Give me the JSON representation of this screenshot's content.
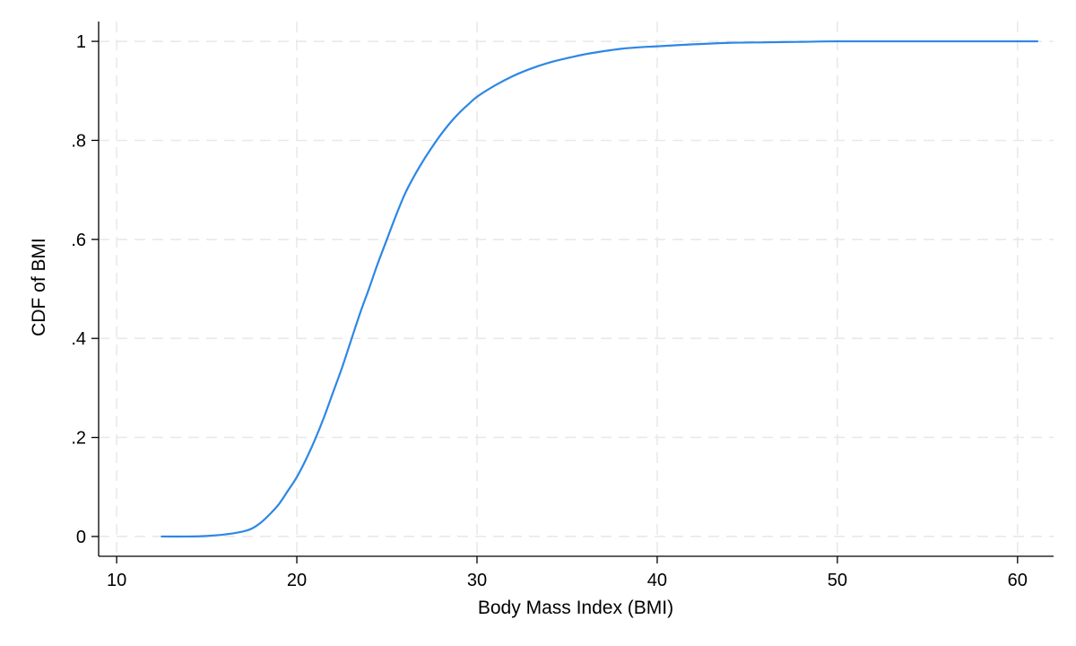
{
  "chart_data": {
    "type": "line",
    "title": "",
    "xlabel": "Body Mass Index (BMI)",
    "ylabel": "CDF of BMI",
    "xlim": [
      9,
      62
    ],
    "ylim": [
      -0.04,
      1.04
    ],
    "x_ticks": [
      10,
      20,
      30,
      40,
      50,
      60
    ],
    "x_tick_labels": [
      "10",
      "20",
      "30",
      "40",
      "50",
      "60"
    ],
    "y_ticks": [
      0,
      0.2,
      0.4,
      0.6,
      0.8,
      1
    ],
    "y_tick_labels": [
      "0",
      ".2",
      ".4",
      ".6",
      ".8",
      "1"
    ],
    "grid": true,
    "series": [
      {
        "color": "#2d87e6",
        "x": [
          12.5,
          14,
          15,
          16,
          17,
          17.5,
          18,
          18.5,
          19,
          19.5,
          20,
          20.5,
          21,
          21.5,
          22,
          22.5,
          23,
          23.5,
          24,
          24.5,
          25,
          25.5,
          26,
          26.5,
          27,
          27.5,
          28,
          28.5,
          29,
          29.5,
          30,
          31,
          32,
          33,
          34,
          35,
          36,
          37,
          38,
          39,
          40,
          42,
          44,
          46,
          48,
          50,
          55,
          61.1
        ],
        "y": [
          0,
          0,
          0.001,
          0.004,
          0.01,
          0.016,
          0.028,
          0.045,
          0.065,
          0.092,
          0.12,
          0.155,
          0.195,
          0.24,
          0.29,
          0.34,
          0.395,
          0.45,
          0.5,
          0.552,
          0.6,
          0.648,
          0.692,
          0.727,
          0.758,
          0.786,
          0.812,
          0.835,
          0.855,
          0.872,
          0.888,
          0.911,
          0.93,
          0.945,
          0.957,
          0.966,
          0.974,
          0.98,
          0.985,
          0.988,
          0.99,
          0.994,
          0.997,
          0.998,
          0.999,
          1,
          1,
          1
        ]
      }
    ]
  }
}
